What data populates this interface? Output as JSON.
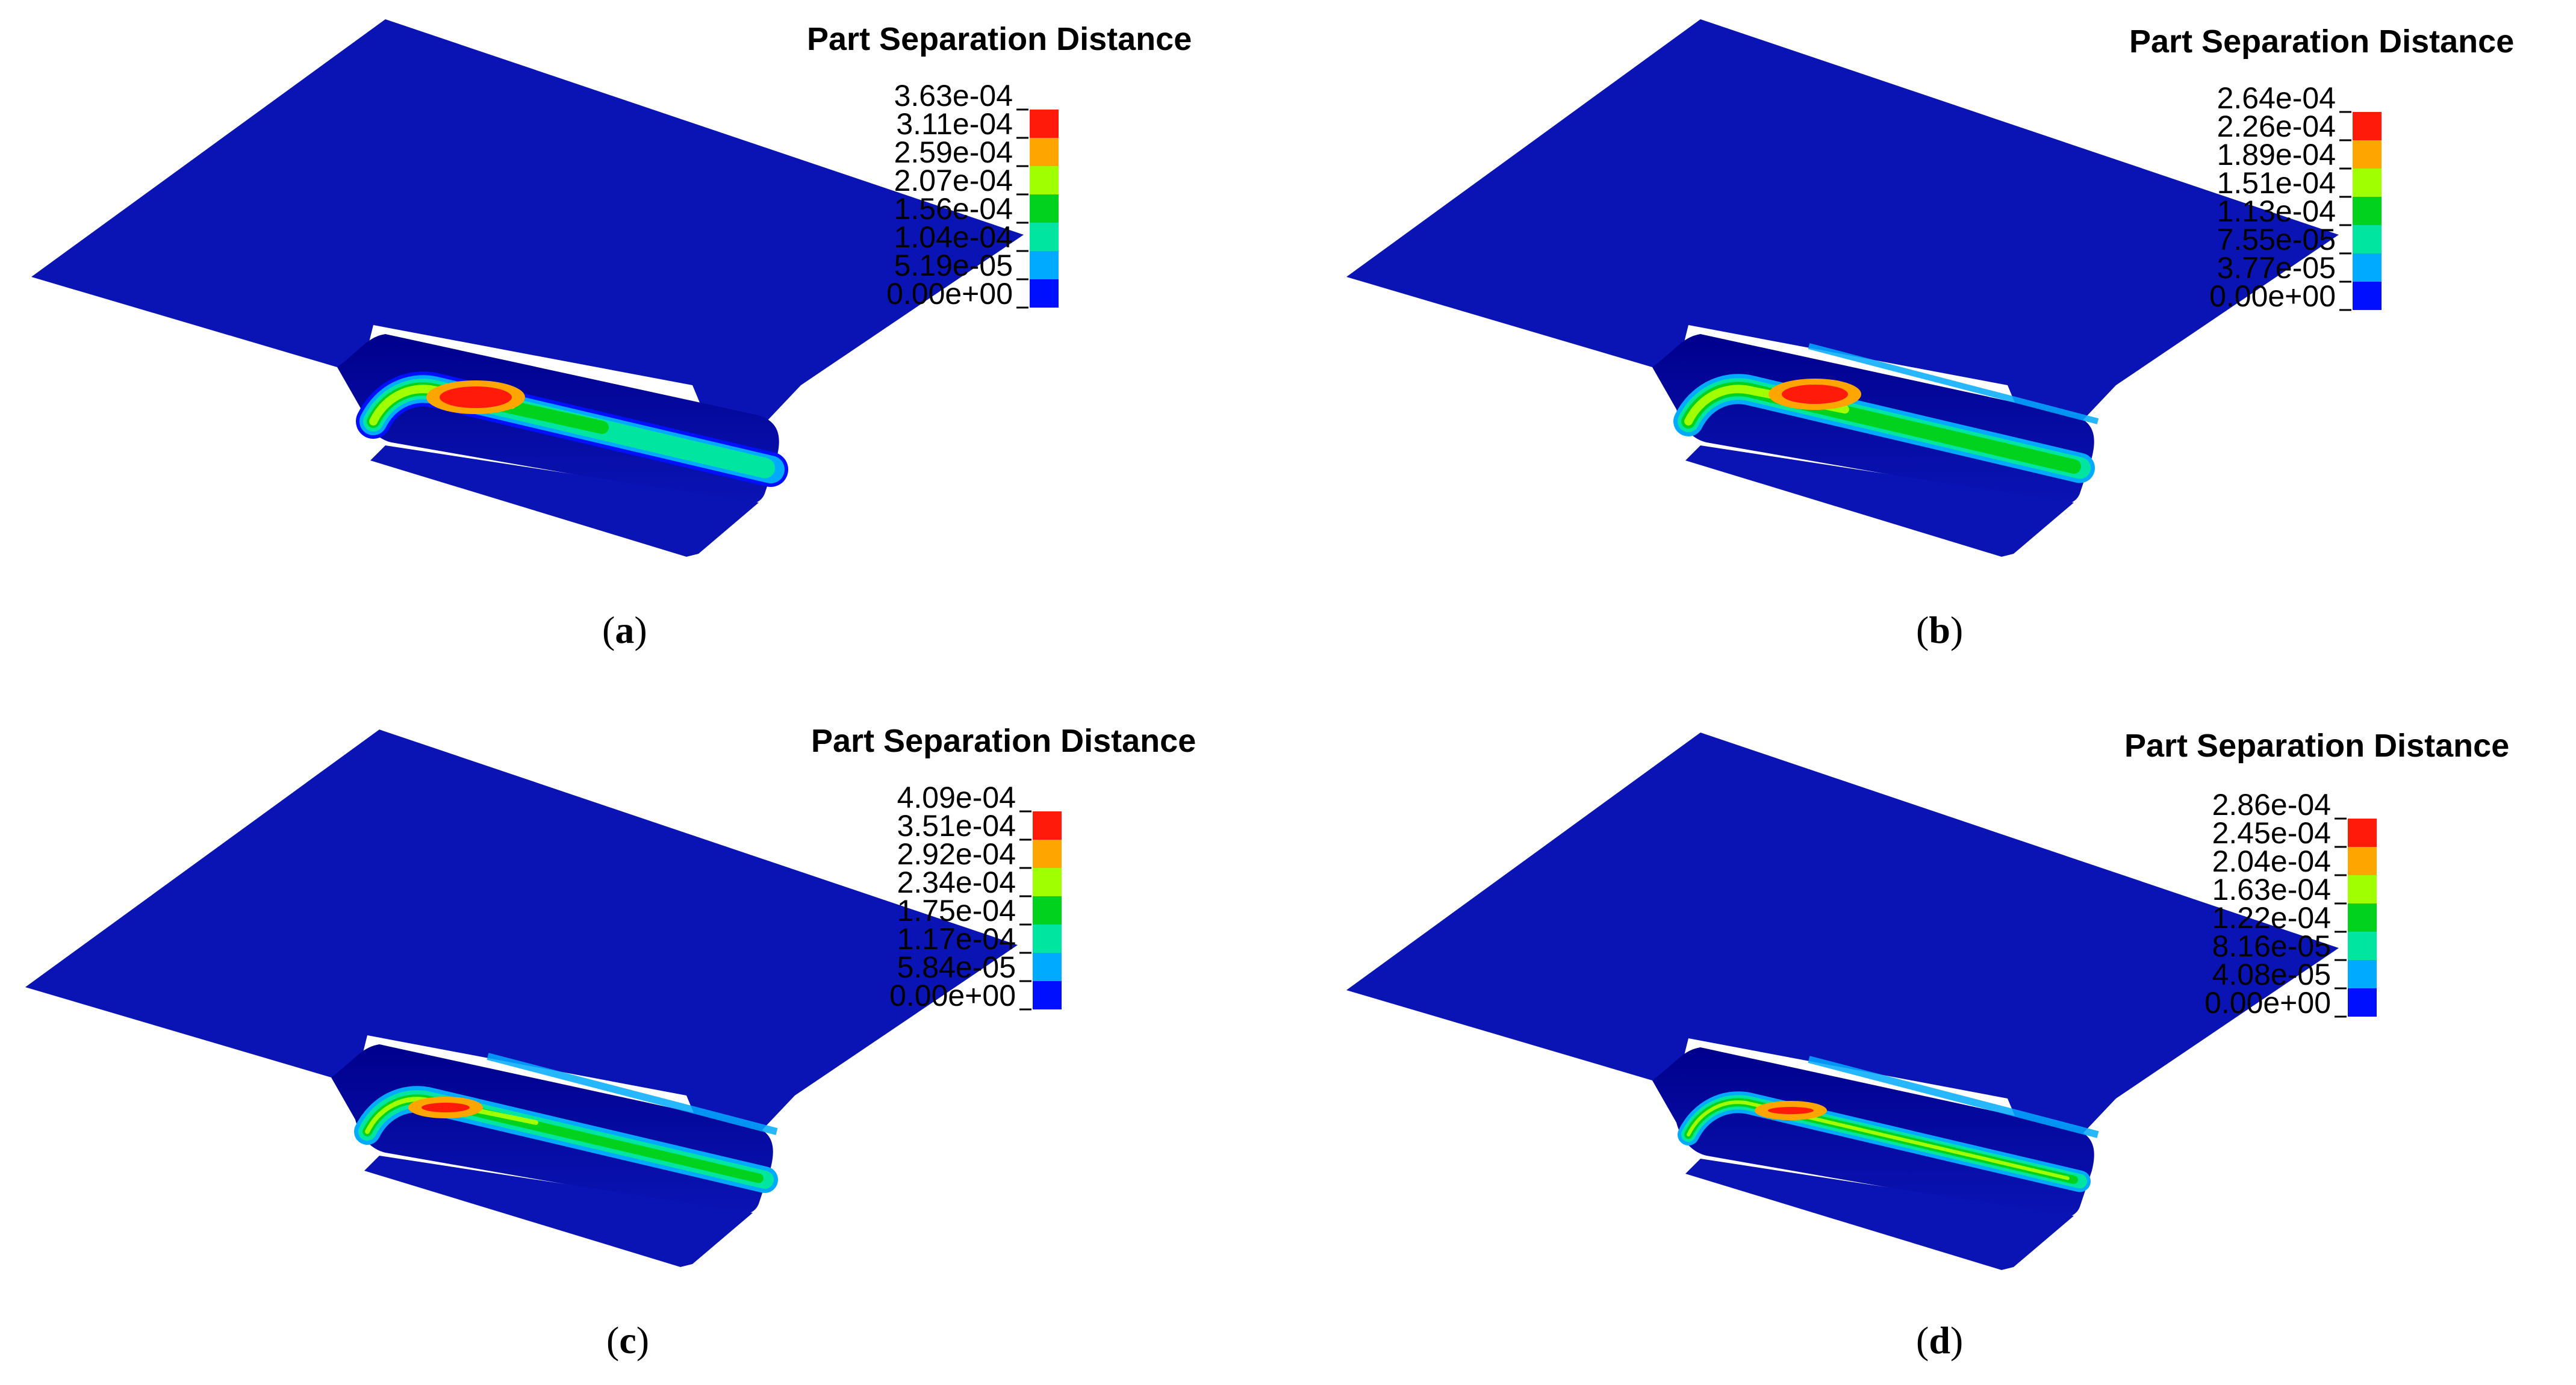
{
  "panels": [
    {
      "id": "a",
      "caption_open": "(",
      "caption_letter": "a",
      "caption_close": ")",
      "legend_title": "Part Separation Distance",
      "legend_ticks": [
        "3.63e-04",
        "3.11e-04",
        "2.59e-04",
        "2.07e-04",
        "1.56e-04",
        "1.04e-04",
        "5.19e-05",
        "0.00e+00"
      ]
    },
    {
      "id": "b",
      "caption_open": "(",
      "caption_letter": "b",
      "caption_close": ")",
      "legend_title": "Part Separation Distance",
      "legend_ticks": [
        "2.64e-04",
        "2.26e-04",
        "1.89e-04",
        "1.51e-04",
        "1.13e-04",
        "7.55e-05",
        "3.77e-05",
        "0.00e+00"
      ]
    },
    {
      "id": "c",
      "caption_open": "(",
      "caption_letter": "c",
      "caption_close": ")",
      "legend_title": "Part Separation Distance",
      "legend_ticks": [
        "4.09e-04",
        "3.51e-04",
        "2.92e-04",
        "2.34e-04",
        "1.75e-04",
        "1.17e-04",
        "5.84e-05",
        "0.00e+00"
      ]
    },
    {
      "id": "d",
      "caption_open": "(",
      "caption_letter": "d",
      "caption_close": ")",
      "legend_title": "Part Separation Distance",
      "legend_ticks": [
        "2.86e-04",
        "2.45e-04",
        "2.04e-04",
        "1.63e-04",
        "1.22e-04",
        "8.16e-05",
        "4.08e-05",
        "0.00e+00"
      ]
    }
  ],
  "colors": {
    "background": "#ffffff",
    "surface_blue": "#0a14b4",
    "surface_blue_dark": "#00008c",
    "legend_bands_top_to_bottom": [
      "#ff1a0a",
      "#ffa500",
      "#a0ff00",
      "#00d21e",
      "#00e6a0",
      "#00aaff",
      "#0010ff"
    ]
  }
}
